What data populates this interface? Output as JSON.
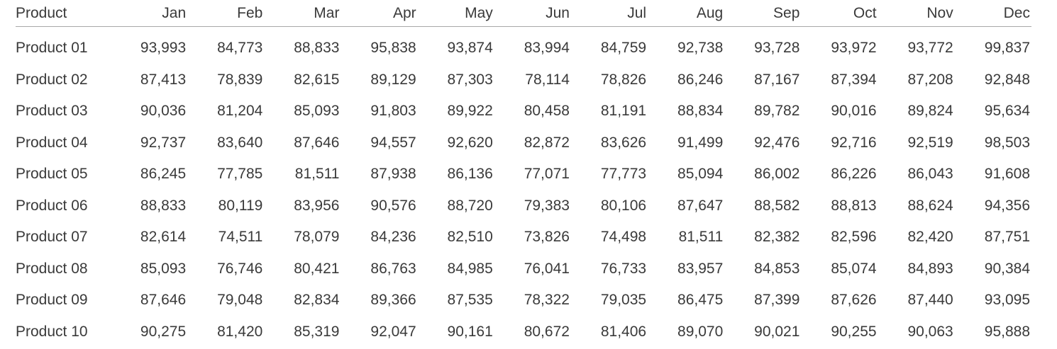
{
  "table": {
    "headers": [
      "Product",
      "Jan",
      "Feb",
      "Mar",
      "Apr",
      "May",
      "Jun",
      "Jul",
      "Aug",
      "Sep",
      "Oct",
      "Nov",
      "Dec"
    ],
    "rows": [
      [
        "Product 01",
        "93,993",
        "84,773",
        "88,833",
        "95,838",
        "93,874",
        "83,994",
        "84,759",
        "92,738",
        "93,728",
        "93,972",
        "93,772",
        "99,837"
      ],
      [
        "Product 02",
        "87,413",
        "78,839",
        "82,615",
        "89,129",
        "87,303",
        "78,114",
        "78,826",
        "86,246",
        "87,167",
        "87,394",
        "87,208",
        "92,848"
      ],
      [
        "Product 03",
        "90,036",
        "81,204",
        "85,093",
        "91,803",
        "89,922",
        "80,458",
        "81,191",
        "88,834",
        "89,782",
        "90,016",
        "89,824",
        "95,634"
      ],
      [
        "Product 04",
        "92,737",
        "83,640",
        "87,646",
        "94,557",
        "92,620",
        "82,872",
        "83,626",
        "91,499",
        "92,476",
        "92,716",
        "92,519",
        "98,503"
      ],
      [
        "Product 05",
        "86,245",
        "77,785",
        "81,511",
        "87,938",
        "86,136",
        "77,071",
        "77,773",
        "85,094",
        "86,002",
        "86,226",
        "86,043",
        "91,608"
      ],
      [
        "Product 06",
        "88,833",
        "80,119",
        "83,956",
        "90,576",
        "88,720",
        "79,383",
        "80,106",
        "87,647",
        "88,582",
        "88,813",
        "88,624",
        "94,356"
      ],
      [
        "Product 07",
        "82,614",
        "74,511",
        "78,079",
        "84,236",
        "82,510",
        "73,826",
        "74,498",
        "81,511",
        "82,382",
        "82,596",
        "82,420",
        "87,751"
      ],
      [
        "Product 08",
        "85,093",
        "76,746",
        "80,421",
        "86,763",
        "84,985",
        "76,041",
        "76,733",
        "83,957",
        "84,853",
        "85,074",
        "84,893",
        "90,384"
      ],
      [
        "Product 09",
        "87,646",
        "79,048",
        "82,834",
        "89,366",
        "87,535",
        "78,322",
        "79,035",
        "86,475",
        "87,399",
        "87,626",
        "87,440",
        "93,095"
      ],
      [
        "Product 10",
        "90,275",
        "81,420",
        "85,319",
        "92,047",
        "90,161",
        "80,672",
        "81,406",
        "89,070",
        "90,021",
        "90,255",
        "90,063",
        "95,888"
      ]
    ]
  }
}
